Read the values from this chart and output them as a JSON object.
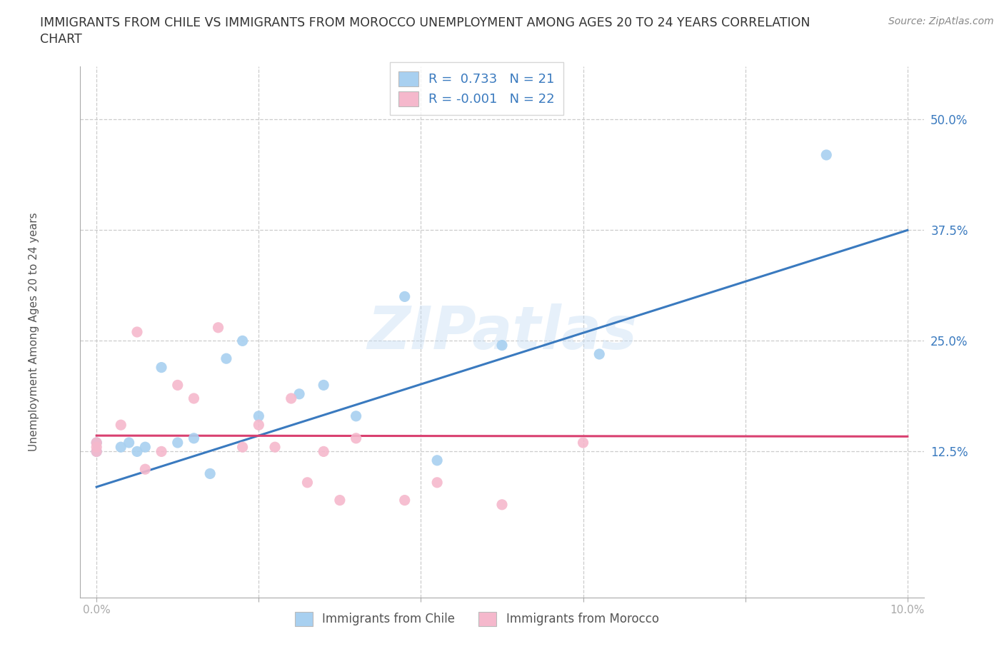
{
  "title_line1": "IMMIGRANTS FROM CHILE VS IMMIGRANTS FROM MOROCCO UNEMPLOYMENT AMONG AGES 20 TO 24 YEARS CORRELATION",
  "title_line2": "CHART",
  "source": "Source: ZipAtlas.com",
  "ylabel": "Unemployment Among Ages 20 to 24 years",
  "xlim": [
    -0.002,
    0.102
  ],
  "ylim": [
    -0.04,
    0.56
  ],
  "xticks": [
    0.0,
    0.02,
    0.04,
    0.06,
    0.08,
    0.1
  ],
  "xtick_labels": [
    "0.0%",
    "",
    "",
    "",
    "",
    "10.0%"
  ],
  "ytick_positions": [
    0.125,
    0.25,
    0.375,
    0.5
  ],
  "ytick_labels": [
    "12.5%",
    "25.0%",
    "37.5%",
    "50.0%"
  ],
  "grid_color": "#cccccc",
  "background_color": "#ffffff",
  "chile_color": "#a8d0f0",
  "morocco_color": "#f5b8cc",
  "chile_line_color": "#3a7abf",
  "morocco_line_color": "#d94070",
  "watermark": "ZIPatlas",
  "R_chile": 0.733,
  "N_chile": 21,
  "R_morocco": -0.001,
  "N_morocco": 22,
  "chile_scatter_x": [
    0.0,
    0.0,
    0.003,
    0.004,
    0.005,
    0.006,
    0.008,
    0.01,
    0.012,
    0.014,
    0.016,
    0.018,
    0.02,
    0.025,
    0.028,
    0.032,
    0.038,
    0.042,
    0.05,
    0.062,
    0.09
  ],
  "chile_scatter_y": [
    0.125,
    0.135,
    0.13,
    0.135,
    0.125,
    0.13,
    0.22,
    0.135,
    0.14,
    0.1,
    0.23,
    0.25,
    0.165,
    0.19,
    0.2,
    0.165,
    0.3,
    0.115,
    0.245,
    0.235,
    0.46
  ],
  "morocco_scatter_x": [
    0.0,
    0.0,
    0.0,
    0.003,
    0.005,
    0.006,
    0.008,
    0.01,
    0.012,
    0.015,
    0.018,
    0.02,
    0.022,
    0.024,
    0.026,
    0.028,
    0.03,
    0.032,
    0.038,
    0.042,
    0.05,
    0.06
  ],
  "morocco_scatter_y": [
    0.125,
    0.13,
    0.135,
    0.155,
    0.26,
    0.105,
    0.125,
    0.2,
    0.185,
    0.265,
    0.13,
    0.155,
    0.13,
    0.185,
    0.09,
    0.125,
    0.07,
    0.14,
    0.07,
    0.09,
    0.065,
    0.135
  ],
  "chile_trend_x": [
    0.0,
    0.1
  ],
  "chile_trend_y": [
    0.085,
    0.375
  ],
  "morocco_trend_x": [
    0.0,
    0.1
  ],
  "morocco_trend_y": [
    0.143,
    0.142
  ]
}
